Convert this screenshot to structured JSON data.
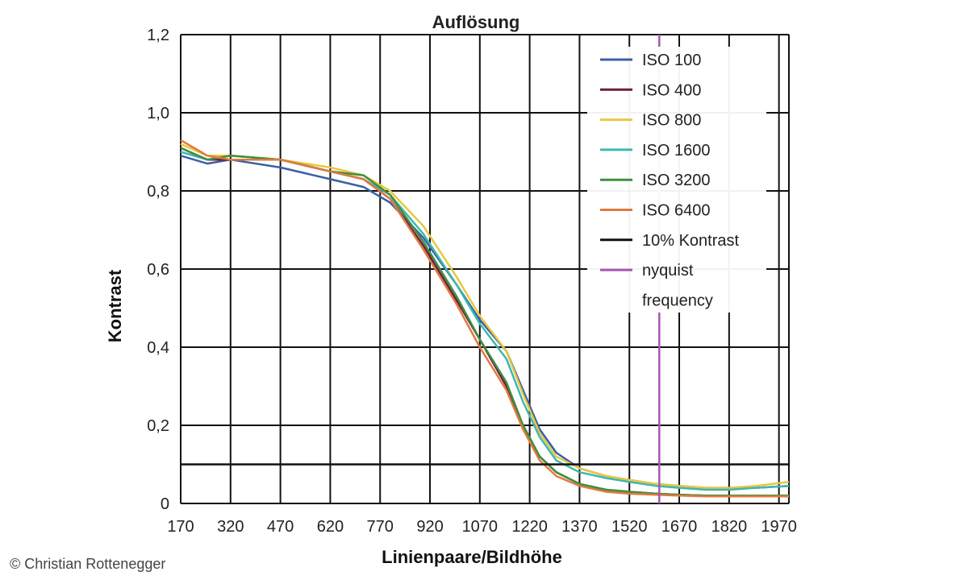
{
  "chart_data": {
    "type": "line",
    "title": "Auflösung",
    "xlabel": "Linienpaare/Bildhöhe",
    "ylabel": "Kontrast",
    "xlim": [
      170,
      2000
    ],
    "ylim": [
      0,
      1.2
    ],
    "x_ticks": [
      170,
      320,
      470,
      620,
      770,
      920,
      1070,
      1220,
      1370,
      1520,
      1670,
      1820,
      1970
    ],
    "x_tick_labels": [
      "170",
      "320",
      "470",
      "620",
      "770",
      "920",
      "1070",
      "1220",
      "1370",
      "1520",
      "1670",
      "1820",
      "1970"
    ],
    "y_ticks": [
      0,
      0.2,
      0.4,
      0.6,
      0.8,
      1.0,
      1.2
    ],
    "y_tick_labels": [
      "0",
      "0,2",
      "0,4",
      "0,6",
      "0,8",
      "1,0",
      "1,2"
    ],
    "grid": true,
    "legend_position": "top-right",
    "series": [
      {
        "name": "ISO 100",
        "color": "#3a5fa6",
        "x": [
          170,
          250,
          320,
          470,
          620,
          720,
          800,
          900,
          1000,
          1070,
          1150,
          1200,
          1250,
          1300,
          1370,
          1450,
          1520,
          1600,
          1670,
          1750,
          1820,
          1900,
          2000
        ],
        "y": [
          0.89,
          0.87,
          0.88,
          0.86,
          0.83,
          0.81,
          0.77,
          0.68,
          0.56,
          0.47,
          0.39,
          0.29,
          0.19,
          0.13,
          0.09,
          0.07,
          0.06,
          0.05,
          0.045,
          0.04,
          0.04,
          0.04,
          0.045
        ]
      },
      {
        "name": "ISO 400",
        "color": "#6b1f3f",
        "x": [
          170,
          250,
          320,
          470,
          620,
          720,
          800,
          900,
          1000,
          1070,
          1150,
          1200,
          1250,
          1300,
          1370,
          1450,
          1520,
          1600,
          1670,
          1750,
          1820,
          1900,
          2000
        ],
        "y": [
          0.91,
          0.88,
          0.88,
          0.88,
          0.85,
          0.83,
          0.78,
          0.66,
          0.52,
          0.42,
          0.3,
          0.2,
          0.12,
          0.08,
          0.05,
          0.035,
          0.03,
          0.025,
          0.022,
          0.02,
          0.02,
          0.02,
          0.02
        ]
      },
      {
        "name": "ISO 800",
        "color": "#e8c840",
        "x": [
          170,
          250,
          320,
          470,
          620,
          720,
          800,
          900,
          1000,
          1070,
          1150,
          1200,
          1250,
          1300,
          1370,
          1450,
          1520,
          1600,
          1670,
          1750,
          1820,
          1900,
          2000
        ],
        "y": [
          0.92,
          0.89,
          0.89,
          0.88,
          0.86,
          0.84,
          0.8,
          0.71,
          0.58,
          0.48,
          0.39,
          0.28,
          0.18,
          0.12,
          0.09,
          0.07,
          0.06,
          0.05,
          0.045,
          0.04,
          0.04,
          0.045,
          0.055
        ]
      },
      {
        "name": "ISO 1600",
        "color": "#3fb8b0",
        "x": [
          170,
          250,
          320,
          470,
          620,
          720,
          800,
          900,
          1000,
          1070,
          1150,
          1200,
          1250,
          1300,
          1370,
          1450,
          1520,
          1600,
          1670,
          1750,
          1820,
          1900,
          2000
        ],
        "y": [
          0.9,
          0.88,
          0.89,
          0.88,
          0.85,
          0.83,
          0.79,
          0.69,
          0.56,
          0.46,
          0.37,
          0.26,
          0.17,
          0.11,
          0.08,
          0.065,
          0.055,
          0.045,
          0.04,
          0.035,
          0.035,
          0.04,
          0.045
        ]
      },
      {
        "name": "ISO 3200",
        "color": "#3f8f3f",
        "x": [
          170,
          250,
          320,
          470,
          620,
          720,
          800,
          900,
          1000,
          1070,
          1150,
          1200,
          1250,
          1300,
          1370,
          1450,
          1520,
          1600,
          1670,
          1750,
          1820,
          1900,
          2000
        ],
        "y": [
          0.91,
          0.88,
          0.89,
          0.88,
          0.85,
          0.84,
          0.79,
          0.67,
          0.53,
          0.42,
          0.31,
          0.2,
          0.12,
          0.08,
          0.05,
          0.035,
          0.03,
          0.025,
          0.022,
          0.02,
          0.02,
          0.02,
          0.02
        ]
      },
      {
        "name": "ISO 6400",
        "color": "#e07a3f",
        "x": [
          170,
          250,
          320,
          470,
          620,
          720,
          800,
          900,
          1000,
          1070,
          1150,
          1200,
          1250,
          1300,
          1370,
          1450,
          1520,
          1600,
          1670,
          1750,
          1820,
          1900,
          2000
        ],
        "y": [
          0.93,
          0.89,
          0.88,
          0.88,
          0.85,
          0.83,
          0.78,
          0.65,
          0.51,
          0.4,
          0.29,
          0.19,
          0.11,
          0.07,
          0.045,
          0.03,
          0.025,
          0.022,
          0.02,
          0.018,
          0.018,
          0.018,
          0.018
        ]
      },
      {
        "name": "10% Kontrast",
        "color": "#111111",
        "kind": "hline",
        "y": 0.1
      },
      {
        "name": "nyquist frequency",
        "label_lines": [
          "nyquist",
          "frequency"
        ],
        "color": "#a855b0",
        "kind": "vline",
        "x": 1610
      }
    ]
  },
  "credit": "© Christian Rottenegger"
}
